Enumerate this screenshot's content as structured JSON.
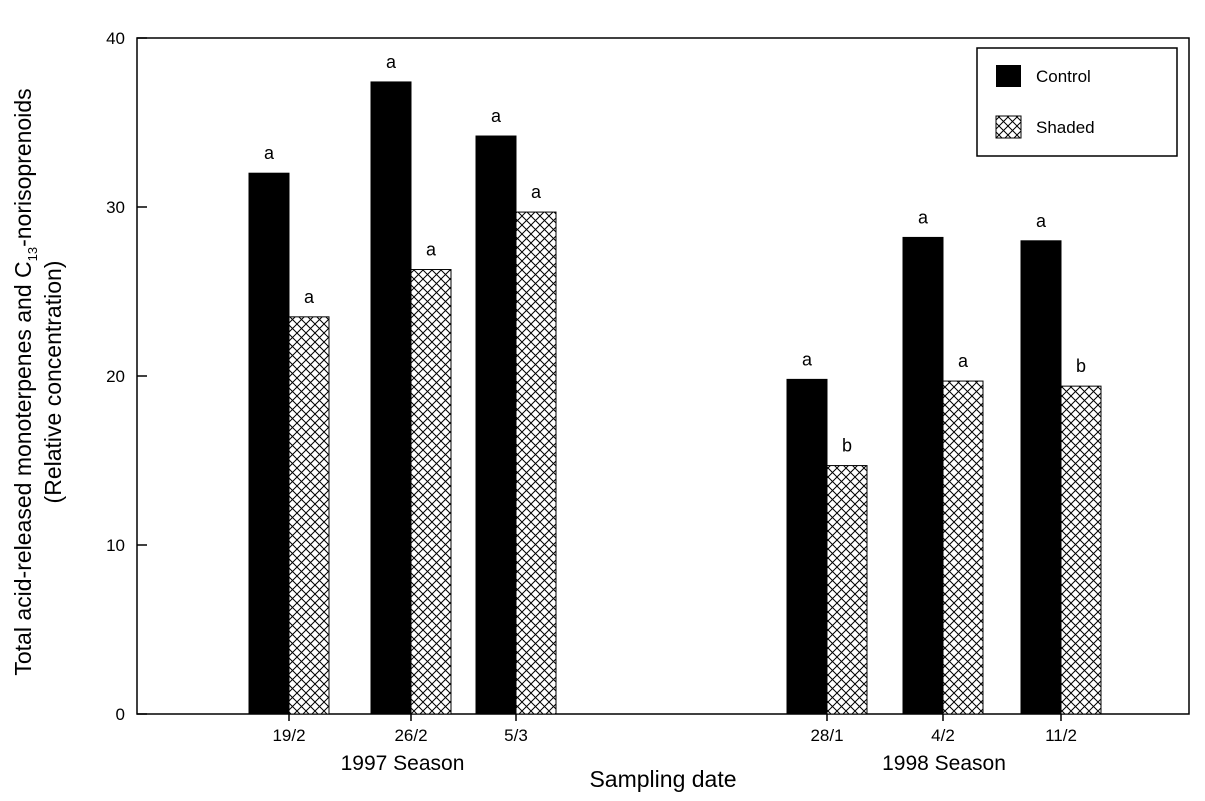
{
  "chart_data": {
    "type": "bar",
    "xlabel": "Sampling date",
    "ylabel_line1": "Total acid-released monoterpenes and C",
    "ylabel_sub": "13",
    "ylabel_line1_suffix": "-norisoprenoids",
    "ylabel_line2": "(Relative concentration)",
    "ylim": [
      0,
      40
    ],
    "yticks": [
      0,
      10,
      20,
      30,
      40
    ],
    "legend_placement": "top-right",
    "groups": [
      {
        "label": "1997 Season",
        "categories": [
          "19/2",
          "26/2",
          "5/3"
        ]
      },
      {
        "label": "1998 Season",
        "categories": [
          "28/1",
          "4/2",
          "11/2"
        ]
      }
    ],
    "series": [
      {
        "name": "Control",
        "fill": "solid",
        "color": "#000000",
        "values": [
          32.0,
          37.4,
          34.2,
          19.8,
          28.2,
          28.0
        ],
        "significance": [
          "a",
          "a",
          "a",
          "a",
          "a",
          "a"
        ]
      },
      {
        "name": "Shaded",
        "fill": "crosshatch",
        "color": "#000000",
        "values": [
          23.5,
          26.3,
          29.7,
          14.7,
          19.7,
          19.4
        ],
        "significance": [
          "a",
          "a",
          "a",
          "b",
          "a",
          "b"
        ]
      }
    ]
  }
}
